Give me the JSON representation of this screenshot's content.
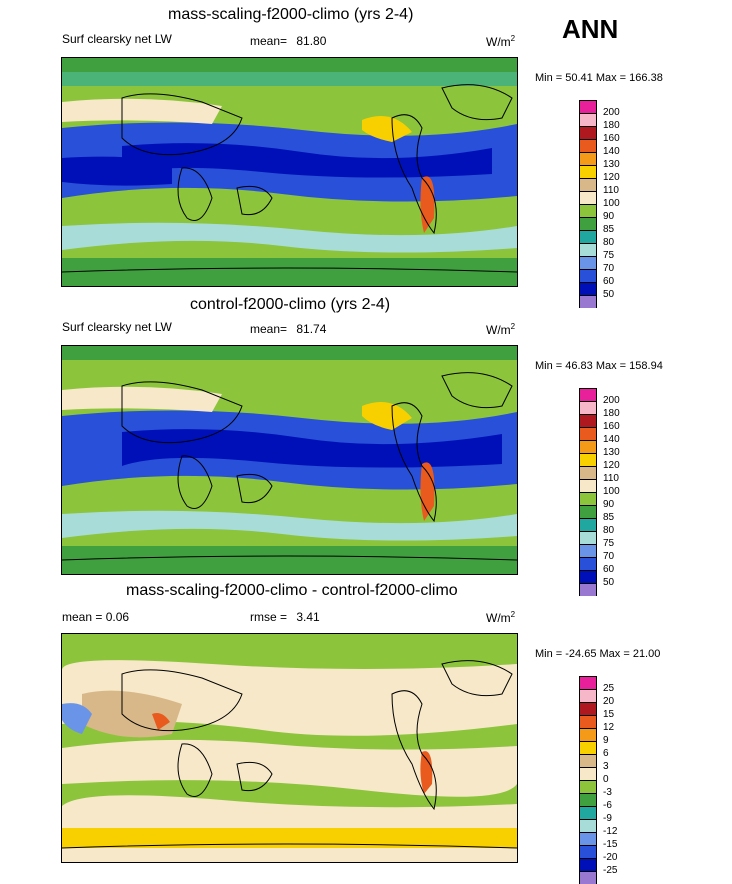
{
  "season": "ANN",
  "panels": [
    {
      "title": "mass-scaling-f2000-climo (yrs 2-4)",
      "left_label": "Surf clearsky net LW",
      "mean_label": "mean=",
      "mean_value": "81.80",
      "units": "W/m",
      "units_sup": "2",
      "minmax": "Min =  50.41 Max = 166.38",
      "levels": [
        "200",
        "180",
        "160",
        "140",
        "130",
        "120",
        "110",
        "100",
        "90",
        "85",
        "80",
        "75",
        "70",
        "60",
        "50"
      ],
      "colors": [
        "#e8209a",
        "#f6b8c8",
        "#b01820",
        "#e85a1e",
        "#f49a18",
        "#f8d000",
        "#d8b888",
        "#f6e8c8",
        "#8cc43c",
        "#40a040",
        "#20a8a0",
        "#a8dcd8",
        "#6a94e8",
        "#2850d8",
        "#0010b8",
        "#9878d0"
      ]
    },
    {
      "title": "control-f2000-climo (yrs 2-4)",
      "left_label": "Surf clearsky net LW",
      "mean_label": "mean=",
      "mean_value": "81.74",
      "units": "W/m",
      "units_sup": "2",
      "minmax": "Min =  46.83 Max = 158.94",
      "levels": [
        "200",
        "180",
        "160",
        "140",
        "130",
        "120",
        "110",
        "100",
        "90",
        "85",
        "80",
        "75",
        "70",
        "60",
        "50"
      ],
      "colors": [
        "#e8209a",
        "#f6b8c8",
        "#b01820",
        "#e85a1e",
        "#f49a18",
        "#f8d000",
        "#d8b888",
        "#f6e8c8",
        "#8cc43c",
        "#40a040",
        "#20a8a0",
        "#a8dcd8",
        "#6a94e8",
        "#2850d8",
        "#0010b8",
        "#9878d0"
      ]
    },
    {
      "title": "mass-scaling-f2000-climo - control-f2000-climo",
      "left_label": "mean =   0.06",
      "mean_label": "rmse =",
      "mean_value": "3.41",
      "units": "W/m",
      "units_sup": "2",
      "minmax": "Min = -24.65 Max =  21.00",
      "levels": [
        "25",
        "20",
        "15",
        "12",
        "9",
        "6",
        "3",
        "0",
        "-3",
        "-6",
        "-9",
        "-12",
        "-15",
        "-20",
        "-25"
      ],
      "colors": [
        "#e8209a",
        "#f6b8c8",
        "#b01820",
        "#e85a1e",
        "#f49a18",
        "#f8d000",
        "#d8b888",
        "#f6e8c8",
        "#8cc43c",
        "#40a040",
        "#20a8a0",
        "#a8dcd8",
        "#6a94e8",
        "#2850d8",
        "#0010b8",
        "#9878d0"
      ]
    }
  ]
}
